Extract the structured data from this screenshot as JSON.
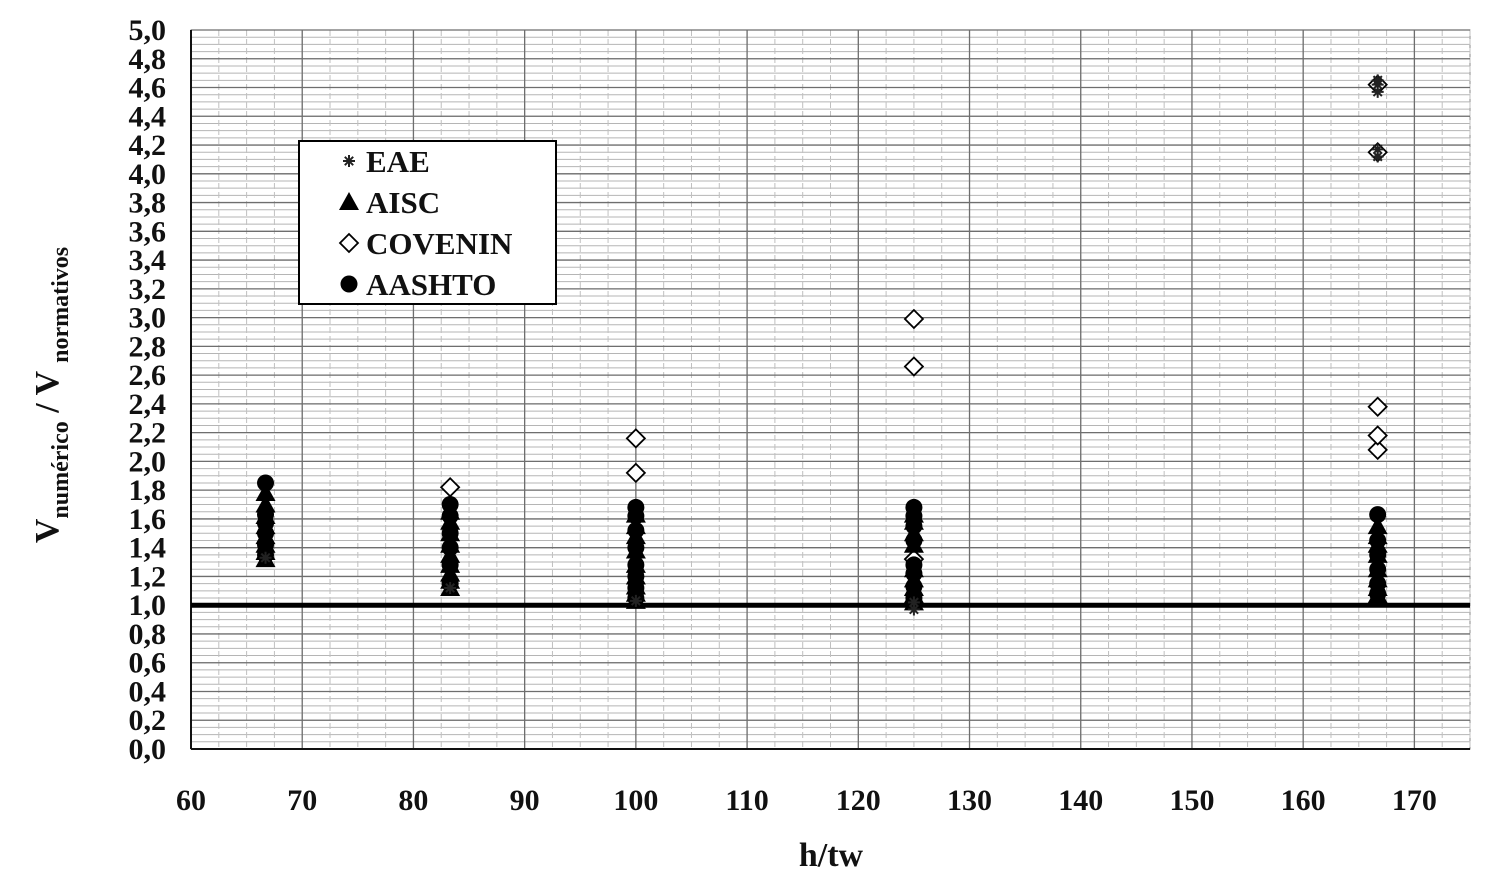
{
  "chart_data": {
    "type": "scatter",
    "title": "",
    "xlabel": "h/tw",
    "ylabel": {
      "base_1": "V",
      "sub_1": "numérico",
      "separator": " / ",
      "base_2": "V",
      "sub_2": "normativos"
    },
    "xlim": [
      60,
      175
    ],
    "ylim": [
      0,
      5
    ],
    "x_ticks": [
      "60",
      "70",
      "80",
      "90",
      "100",
      "110",
      "120",
      "130",
      "140",
      "150",
      "160",
      "170"
    ],
    "y_ticks": [
      "0,0",
      "0,2",
      "0,4",
      "0,6",
      "0,8",
      "1,0",
      "1,2",
      "1,4",
      "1,6",
      "1,8",
      "2,0",
      "2,2",
      "2,4",
      "2,6",
      "2,8",
      "3,0",
      "3,2",
      "3,4",
      "3,6",
      "3,8",
      "4,0",
      "4,2",
      "4,4",
      "4,6",
      "4,8",
      "5,0"
    ],
    "grid": true,
    "legend": "upper-left",
    "reference_line": {
      "y": 1.0
    },
    "series": [
      {
        "name": "EAE",
        "marker": "star",
        "color": "#222222",
        "points": [
          [
            125,
            0.97
          ],
          [
            125,
            1.02
          ],
          [
            100,
            1.03
          ],
          [
            83.3,
            1.12
          ],
          [
            66.7,
            1.33
          ],
          [
            166.7,
            4.12
          ],
          [
            166.7,
            4.17
          ],
          [
            166.7,
            4.57
          ],
          [
            166.7,
            4.62
          ],
          [
            166.7,
            4.65
          ]
        ]
      },
      {
        "name": "AISC",
        "marker": "triangle",
        "color": "#000000",
        "points": [
          [
            66.7,
            1.32
          ],
          [
            66.7,
            1.37
          ],
          [
            66.7,
            1.42
          ],
          [
            66.7,
            1.48
          ],
          [
            66.7,
            1.55
          ],
          [
            66.7,
            1.62
          ],
          [
            66.7,
            1.7
          ],
          [
            66.7,
            1.78
          ],
          [
            83.3,
            1.12
          ],
          [
            83.3,
            1.17
          ],
          [
            83.3,
            1.22
          ],
          [
            83.3,
            1.28
          ],
          [
            83.3,
            1.35
          ],
          [
            83.3,
            1.42
          ],
          [
            83.3,
            1.5
          ],
          [
            83.3,
            1.58
          ],
          [
            83.3,
            1.65
          ],
          [
            100,
            1.03
          ],
          [
            100,
            1.08
          ],
          [
            100,
            1.13
          ],
          [
            100,
            1.2
          ],
          [
            100,
            1.28
          ],
          [
            100,
            1.38
          ],
          [
            100,
            1.48
          ],
          [
            100,
            1.55
          ],
          [
            100,
            1.63
          ],
          [
            125,
            1.02
          ],
          [
            125,
            1.07
          ],
          [
            125,
            1.12
          ],
          [
            125,
            1.18
          ],
          [
            125,
            1.25
          ],
          [
            125,
            1.42
          ],
          [
            125,
            1.5
          ],
          [
            125,
            1.58
          ],
          [
            125,
            1.63
          ],
          [
            166.7,
            1.07
          ],
          [
            166.7,
            1.12
          ],
          [
            166.7,
            1.18
          ],
          [
            166.7,
            1.25
          ],
          [
            166.7,
            1.35
          ],
          [
            166.7,
            1.42
          ],
          [
            166.7,
            1.48
          ],
          [
            166.7,
            1.55
          ]
        ]
      },
      {
        "name": "COVENIN",
        "marker": "diamond",
        "color": "#000000",
        "points": [
          [
            83.3,
            1.82
          ],
          [
            100,
            1.92
          ],
          [
            100,
            2.16
          ],
          [
            125,
            1.32
          ],
          [
            125,
            2.66
          ],
          [
            125,
            2.99
          ],
          [
            166.7,
            2.08
          ],
          [
            166.7,
            2.18
          ],
          [
            166.7,
            2.38
          ],
          [
            166.7,
            4.15
          ],
          [
            166.7,
            4.62
          ]
        ]
      },
      {
        "name": "AASHTO",
        "marker": "circle",
        "color": "#000000",
        "points": [
          [
            66.7,
            1.35
          ],
          [
            66.7,
            1.42
          ],
          [
            66.7,
            1.5
          ],
          [
            66.7,
            1.57
          ],
          [
            66.7,
            1.63
          ],
          [
            66.7,
            1.85
          ],
          [
            83.3,
            1.15
          ],
          [
            83.3,
            1.28
          ],
          [
            83.3,
            1.4
          ],
          [
            83.3,
            1.5
          ],
          [
            83.3,
            1.62
          ],
          [
            83.3,
            1.7
          ],
          [
            100,
            1.05
          ],
          [
            100,
            1.12
          ],
          [
            100,
            1.2
          ],
          [
            100,
            1.28
          ],
          [
            100,
            1.4
          ],
          [
            100,
            1.52
          ],
          [
            100,
            1.62
          ],
          [
            100,
            1.68
          ],
          [
            125,
            1.05
          ],
          [
            125,
            1.13
          ],
          [
            125,
            1.22
          ],
          [
            125,
            1.28
          ],
          [
            125,
            1.45
          ],
          [
            125,
            1.55
          ],
          [
            125,
            1.62
          ],
          [
            125,
            1.68
          ],
          [
            166.7,
            1.08
          ],
          [
            166.7,
            1.15
          ],
          [
            166.7,
            1.25
          ],
          [
            166.7,
            1.35
          ],
          [
            166.7,
            1.45
          ],
          [
            166.7,
            1.63
          ]
        ]
      }
    ]
  }
}
